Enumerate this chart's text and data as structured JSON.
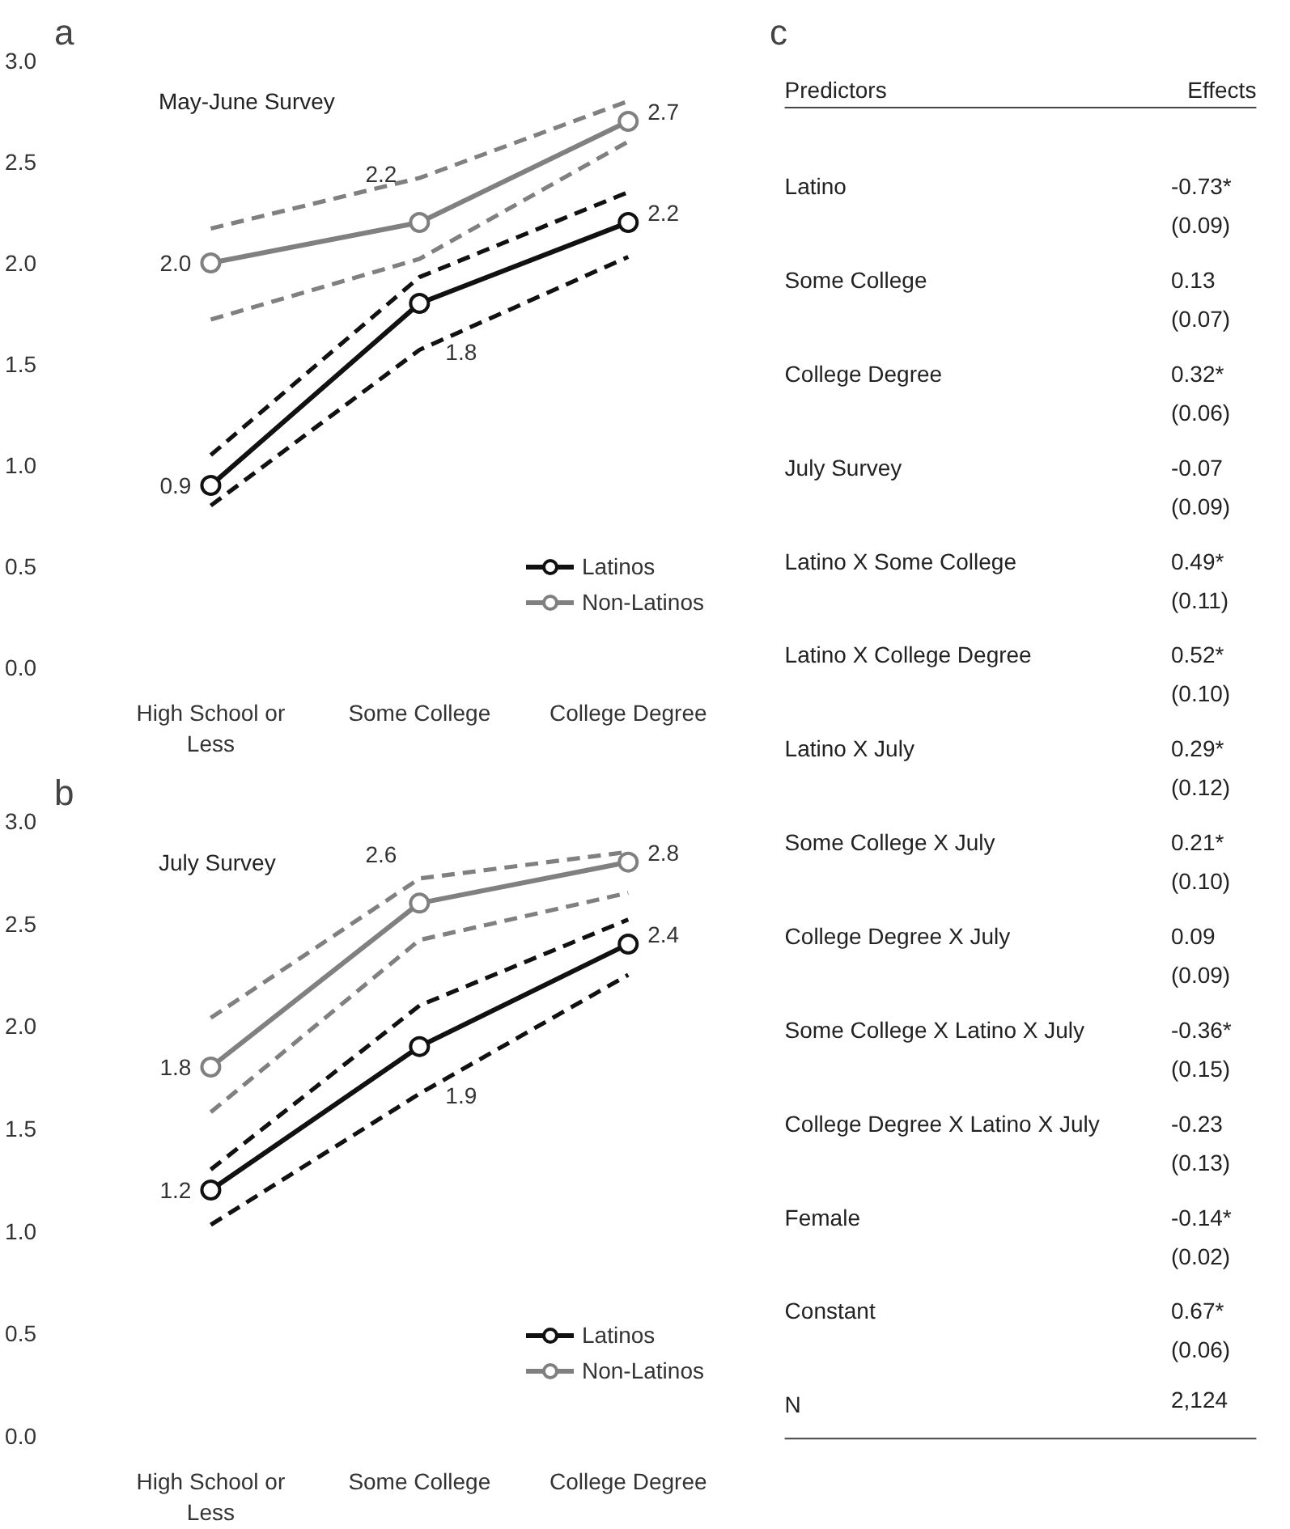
{
  "chart_data": [
    {
      "type": "line",
      "title": "a",
      "subtitle": "May-June Survey",
      "categories": [
        "High School or\nLess",
        "Some College",
        "College Degree"
      ],
      "ylim": [
        0,
        3
      ],
      "yticks": [
        {
          "value": 0,
          "label": "0.0"
        },
        0.5,
        {
          "value": 1,
          "label": "1.0"
        },
        1.5,
        {
          "value": 2,
          "label": "2.0"
        },
        2.5,
        {
          "value": 3,
          "label": "3.0"
        }
      ],
      "marker": "circle",
      "legend": "bottom right",
      "grid": false,
      "series": [
        {
          "color": "#111111",
          "values": [
            1.05,
            1.93,
            2.35
          ],
          "line_style": "dashed",
          "marker": "none"
        },
        {
          "color": "#111111",
          "values": [
            0.8,
            1.57,
            2.03
          ],
          "line_style": "dashed",
          "marker": "none"
        },
        {
          "color": "#808080",
          "values": [
            2.17,
            2.42,
            2.8
          ],
          "line_style": "dashed",
          "marker": "none"
        },
        {
          "color": "#808080",
          "values": [
            1.72,
            2.02,
            2.6
          ],
          "line_style": "dashed",
          "marker": "none"
        },
        {
          "name": "Latinos",
          "color": "#111111",
          "values": [
            0.9,
            1.8,
            2.2
          ],
          "value_labels": [
            "0.9",
            "1.8",
            "2.2"
          ]
        },
        {
          "name": "Non-Latinos",
          "color": "#808080",
          "values": [
            2.0,
            2.2,
            2.7
          ],
          "value_labels": [
            "2.0",
            "2.2",
            "2.7"
          ]
        }
      ]
    },
    {
      "type": "line",
      "title": "b",
      "subtitle": "July Survey",
      "categories": [
        "High School or\nLess",
        "Some College",
        "College Degree"
      ],
      "ylim": [
        0,
        3
      ],
      "yticks": [
        {
          "value": 0,
          "label": "0.0"
        },
        0.5,
        {
          "value": 1,
          "label": "1.0"
        },
        1.5,
        {
          "value": 2,
          "label": "2.0"
        },
        2.5,
        {
          "value": 3,
          "label": "3.0"
        }
      ],
      "marker": "circle",
      "legend": "bottom right",
      "grid": false,
      "series": [
        {
          "color": "#111111",
          "values": [
            1.3,
            2.1,
            2.52
          ],
          "line_style": "dashed",
          "marker": "none"
        },
        {
          "color": "#111111",
          "values": [
            1.03,
            1.67,
            2.25
          ],
          "line_style": "dashed",
          "marker": "none"
        },
        {
          "color": "#808080",
          "values": [
            2.04,
            2.72,
            2.85
          ],
          "line_style": "dashed",
          "marker": "none"
        },
        {
          "color": "#808080",
          "values": [
            1.58,
            2.42,
            2.65
          ],
          "line_style": "dashed",
          "marker": "none"
        },
        {
          "name": "Latinos",
          "color": "#111111",
          "values": [
            1.2,
            1.9,
            2.4
          ],
          "value_labels": [
            "1.2",
            "1.9",
            "2.4"
          ]
        },
        {
          "name": "Non-Latinos",
          "color": "#808080",
          "values": [
            1.8,
            2.6,
            2.8
          ],
          "value_labels": [
            "1.8",
            "2.6",
            "2.8"
          ]
        }
      ]
    },
    {
      "type": "other",
      "title": "c",
      "xlabel": "Predictors",
      "ylabel": "Effects",
      "categories": [
        "Latino",
        "Some College",
        "College Degree",
        "July Survey",
        "Latino X Some College",
        "Latino X College Degree",
        "Latino X July",
        "Some College X July",
        "College Degree X July",
        "Some College X Latino X July",
        "College Degree X Latino X July",
        "Female",
        "Constant",
        "N"
      ],
      "value_labels": [
        "-0.73*\n(0.09)",
        "0.13\n(0.07)",
        "0.32*\n(0.06)",
        "-0.07\n(0.09)",
        "0.49*\n(0.11)",
        "0.52*\n(0.10)",
        "0.29*\n(0.12)",
        "0.21*\n(0.10)",
        "0.09\n(0.09)",
        "-0.36*\n(0.15)",
        "-0.23\n(0.13)",
        "-0.14*\n(0.02)",
        "0.67*\n(0.06)",
        "2,124"
      ]
    }
  ]
}
